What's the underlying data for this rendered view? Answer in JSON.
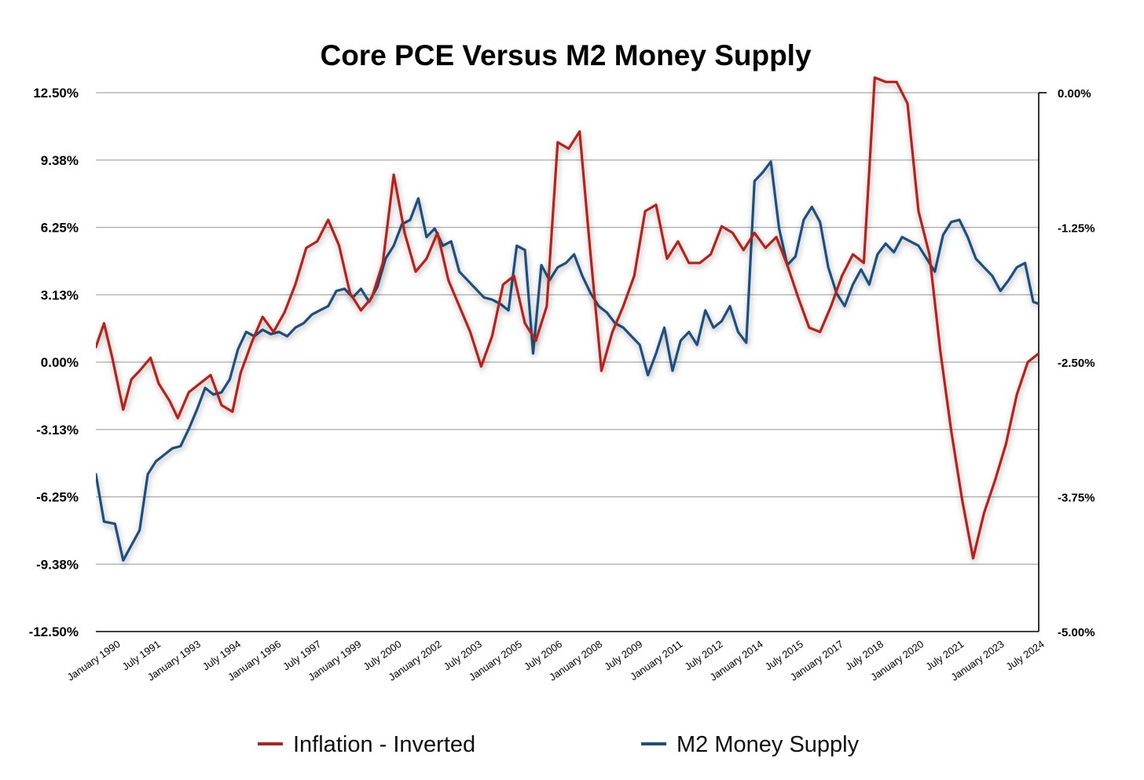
{
  "chart_data": {
    "type": "line",
    "title": "Core PCE Versus M2 Money Supply",
    "y_left": {
      "ticks": [
        "12.50%",
        "9.38%",
        "6.25%",
        "3.13%",
        "0.00%",
        "-3.13%",
        "-6.25%",
        "-9.38%",
        "-12.50%"
      ],
      "range": [
        -12.5,
        12.5
      ]
    },
    "y_right": {
      "ticks": [
        "0.00%",
        "-1.25%",
        "-2.50%",
        "-3.75%",
        "-5.00%"
      ],
      "range": [
        -5.0,
        0.0
      ]
    },
    "x_ticks": [
      "January 1990",
      "July 1991",
      "January 1993",
      "July 1994",
      "January 1996",
      "July 1997",
      "January 1999",
      "July 2000",
      "January 2002",
      "July 2003",
      "January 2005",
      "July 2006",
      "January 2008",
      "July 2009",
      "January 2011",
      "July 2012",
      "January 2014",
      "July 2015",
      "January 2017",
      "July 2018",
      "January 2020",
      "July 2021",
      "January 2023",
      "July 2024"
    ],
    "x_range": [
      1990.0,
      2024.5
    ],
    "grid": true,
    "legend_position": "bottom",
    "series": [
      {
        "name": "M2 Money Supply",
        "axis": "left",
        "color": "#1d4f7e",
        "points": [
          [
            1990.0,
            -5.2
          ],
          [
            1990.3,
            -7.4
          ],
          [
            1990.7,
            -7.5
          ],
          [
            1991.0,
            -9.2
          ],
          [
            1991.3,
            -8.5
          ],
          [
            1991.6,
            -7.8
          ],
          [
            1991.9,
            -5.2
          ],
          [
            1992.2,
            -4.6
          ],
          [
            1992.5,
            -4.3
          ],
          [
            1992.8,
            -4.0
          ],
          [
            1993.1,
            -3.9
          ],
          [
            1993.4,
            -3.1
          ],
          [
            1993.7,
            -2.2
          ],
          [
            1994.0,
            -1.2
          ],
          [
            1994.3,
            -1.5
          ],
          [
            1994.6,
            -1.4
          ],
          [
            1994.9,
            -0.8
          ],
          [
            1995.2,
            0.6
          ],
          [
            1995.5,
            1.4
          ],
          [
            1995.8,
            1.2
          ],
          [
            1996.1,
            1.5
          ],
          [
            1996.4,
            1.3
          ],
          [
            1996.7,
            1.4
          ],
          [
            1997.0,
            1.2
          ],
          [
            1997.3,
            1.6
          ],
          [
            1997.6,
            1.8
          ],
          [
            1997.9,
            2.2
          ],
          [
            1998.2,
            2.4
          ],
          [
            1998.5,
            2.6
          ],
          [
            1998.8,
            3.3
          ],
          [
            1999.1,
            3.4
          ],
          [
            1999.4,
            3.0
          ],
          [
            1999.7,
            3.4
          ],
          [
            2000.0,
            2.8
          ],
          [
            2000.3,
            3.5
          ],
          [
            2000.6,
            4.8
          ],
          [
            2000.9,
            5.4
          ],
          [
            2001.2,
            6.4
          ],
          [
            2001.5,
            6.6
          ],
          [
            2001.8,
            7.6
          ],
          [
            2002.1,
            5.8
          ],
          [
            2002.4,
            6.2
          ],
          [
            2002.7,
            5.4
          ],
          [
            2003.0,
            5.6
          ],
          [
            2003.3,
            4.2
          ],
          [
            2003.6,
            3.8
          ],
          [
            2003.9,
            3.4
          ],
          [
            2004.2,
            3.0
          ],
          [
            2004.5,
            2.9
          ],
          [
            2004.8,
            2.7
          ],
          [
            2005.1,
            2.4
          ],
          [
            2005.4,
            5.4
          ],
          [
            2005.7,
            5.2
          ],
          [
            2006.0,
            0.4
          ],
          [
            2006.3,
            4.5
          ],
          [
            2006.6,
            3.8
          ],
          [
            2006.9,
            4.4
          ],
          [
            2007.2,
            4.6
          ],
          [
            2007.5,
            5.0
          ],
          [
            2007.8,
            4.0
          ],
          [
            2008.1,
            3.2
          ],
          [
            2008.4,
            2.6
          ],
          [
            2008.7,
            2.3
          ],
          [
            2009.0,
            1.8
          ],
          [
            2009.3,
            1.6
          ],
          [
            2009.6,
            1.2
          ],
          [
            2009.9,
            0.8
          ],
          [
            2010.2,
            -0.6
          ],
          [
            2010.5,
            0.4
          ],
          [
            2010.8,
            1.6
          ],
          [
            2011.1,
            -0.4
          ],
          [
            2011.4,
            1.0
          ],
          [
            2011.7,
            1.4
          ],
          [
            2012.0,
            0.8
          ],
          [
            2012.3,
            2.4
          ],
          [
            2012.6,
            1.6
          ],
          [
            2012.9,
            1.9
          ],
          [
            2013.2,
            2.6
          ],
          [
            2013.5,
            1.4
          ],
          [
            2013.8,
            0.9
          ],
          [
            2014.1,
            8.4
          ],
          [
            2014.4,
            8.8
          ],
          [
            2014.7,
            9.3
          ],
          [
            2015.0,
            6.2
          ],
          [
            2015.3,
            4.5
          ],
          [
            2015.6,
            4.9
          ],
          [
            2015.9,
            6.6
          ],
          [
            2016.2,
            7.2
          ],
          [
            2016.5,
            6.5
          ],
          [
            2016.8,
            4.4
          ],
          [
            2017.1,
            3.2
          ],
          [
            2017.4,
            2.6
          ],
          [
            2017.7,
            3.6
          ],
          [
            2018.0,
            4.3
          ],
          [
            2018.3,
            3.6
          ],
          [
            2018.6,
            5.0
          ],
          [
            2018.9,
            5.5
          ],
          [
            2019.2,
            5.1
          ],
          [
            2019.5,
            5.8
          ],
          [
            2019.8,
            5.6
          ],
          [
            2020.1,
            5.4
          ],
          [
            2020.4,
            4.8
          ],
          [
            2020.7,
            4.2
          ],
          [
            2021.0,
            5.9
          ],
          [
            2021.3,
            6.5
          ],
          [
            2021.6,
            6.6
          ],
          [
            2021.9,
            5.8
          ],
          [
            2022.2,
            4.8
          ],
          [
            2022.5,
            4.4
          ],
          [
            2022.8,
            4.0
          ],
          [
            2023.1,
            3.3
          ],
          [
            2023.4,
            3.8
          ],
          [
            2023.7,
            4.4
          ],
          [
            2024.0,
            4.6
          ],
          [
            2024.3,
            2.8
          ],
          [
            2024.5,
            2.7
          ]
        ]
      },
      {
        "name": "Inflation - Inverted",
        "axis": "left",
        "color": "#b5221b",
        "points": [
          [
            1990.0,
            0.7
          ],
          [
            1990.3,
            1.8
          ],
          [
            1990.6,
            0.2
          ],
          [
            1991.0,
            -2.2
          ],
          [
            1991.3,
            -0.8
          ],
          [
            1991.6,
            -0.4
          ],
          [
            1992.0,
            0.2
          ],
          [
            1992.3,
            -1.0
          ],
          [
            1992.7,
            -1.8
          ],
          [
            1993.0,
            -2.6
          ],
          [
            1993.4,
            -1.4
          ],
          [
            1993.8,
            -1.0
          ],
          [
            1994.2,
            -0.6
          ],
          [
            1994.6,
            -2.0
          ],
          [
            1995.0,
            -2.3
          ],
          [
            1995.3,
            -0.5
          ],
          [
            1995.7,
            0.9
          ],
          [
            1996.1,
            2.1
          ],
          [
            1996.5,
            1.4
          ],
          [
            1996.9,
            2.3
          ],
          [
            1997.3,
            3.6
          ],
          [
            1997.7,
            5.3
          ],
          [
            1998.1,
            5.6
          ],
          [
            1998.5,
            6.6
          ],
          [
            1998.9,
            5.4
          ],
          [
            1999.3,
            3.2
          ],
          [
            1999.7,
            2.4
          ],
          [
            2000.1,
            3.0
          ],
          [
            2000.5,
            4.6
          ],
          [
            2000.9,
            8.7
          ],
          [
            2001.3,
            6.0
          ],
          [
            2001.7,
            4.2
          ],
          [
            2002.1,
            4.8
          ],
          [
            2002.5,
            6.0
          ],
          [
            2002.9,
            3.8
          ],
          [
            2003.3,
            2.6
          ],
          [
            2003.7,
            1.4
          ],
          [
            2004.1,
            -0.2
          ],
          [
            2004.5,
            1.2
          ],
          [
            2004.9,
            3.6
          ],
          [
            2005.3,
            4.0
          ],
          [
            2005.7,
            1.8
          ],
          [
            2006.1,
            1.0
          ],
          [
            2006.5,
            2.6
          ],
          [
            2006.9,
            10.2
          ],
          [
            2007.3,
            9.9
          ],
          [
            2007.7,
            10.7
          ],
          [
            2008.1,
            5.0
          ],
          [
            2008.5,
            -0.4
          ],
          [
            2008.9,
            1.4
          ],
          [
            2009.3,
            2.6
          ],
          [
            2009.7,
            4.0
          ],
          [
            2010.1,
            7.0
          ],
          [
            2010.5,
            7.3
          ],
          [
            2010.9,
            4.8
          ],
          [
            2011.3,
            5.6
          ],
          [
            2011.7,
            4.6
          ],
          [
            2012.1,
            4.6
          ],
          [
            2012.5,
            5.0
          ],
          [
            2012.9,
            6.3
          ],
          [
            2013.3,
            6.0
          ],
          [
            2013.7,
            5.2
          ],
          [
            2014.1,
            6.0
          ],
          [
            2014.5,
            5.3
          ],
          [
            2014.9,
            5.8
          ],
          [
            2015.3,
            4.5
          ],
          [
            2015.7,
            3.0
          ],
          [
            2016.1,
            1.6
          ],
          [
            2016.5,
            1.4
          ],
          [
            2016.9,
            2.6
          ],
          [
            2017.3,
            4.0
          ],
          [
            2017.7,
            5.0
          ],
          [
            2018.1,
            4.6
          ],
          [
            2018.5,
            13.2
          ],
          [
            2018.9,
            13.0
          ],
          [
            2019.3,
            13.0
          ],
          [
            2019.7,
            12.0
          ],
          [
            2020.1,
            7.0
          ],
          [
            2020.5,
            5.0
          ],
          [
            2020.9,
            0.5
          ],
          [
            2021.3,
            -3.2
          ],
          [
            2021.7,
            -6.4
          ],
          [
            2022.1,
            -9.1
          ],
          [
            2022.5,
            -7.0
          ],
          [
            2022.9,
            -5.5
          ],
          [
            2023.3,
            -3.8
          ],
          [
            2023.7,
            -1.5
          ],
          [
            2024.1,
            0.0
          ],
          [
            2024.5,
            0.4
          ]
        ]
      }
    ]
  },
  "legend": [
    {
      "label": "Inflation - Inverted",
      "color": "#b5221b"
    },
    {
      "label": "M2 Money Supply",
      "color": "#1d4f7e"
    }
  ]
}
